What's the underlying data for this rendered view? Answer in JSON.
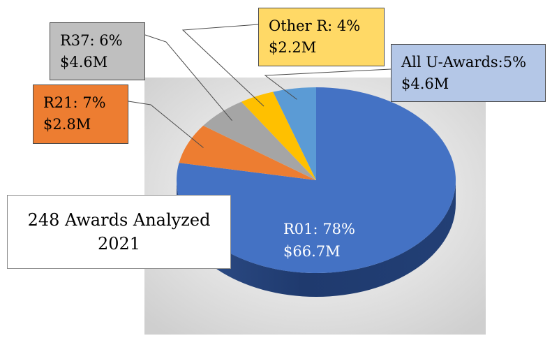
{
  "chart_data": {
    "type": "pie",
    "style": "3d",
    "slices": [
      {
        "label": "R01",
        "percent": 78,
        "amount": "$66.7M",
        "color": "#4472c4",
        "line1": "R01: 78%",
        "line2": "$66.7M"
      },
      {
        "label": "R21",
        "percent": 7,
        "amount": "$2.8M",
        "color": "#ed7d31",
        "line1": "R21: 7%",
        "line2": "$2.8M"
      },
      {
        "label": "R37",
        "percent": 6,
        "amount": "$4.6M",
        "color": "#a5a5a5",
        "line1": "R37: 6%",
        "line2": "$4.6M"
      },
      {
        "label": "Other R",
        "percent": 4,
        "amount": "$2.2M",
        "color": "#ffc000",
        "line1": "Other R: 4%",
        "line2": "$2.2M"
      },
      {
        "label": "All U-Awards",
        "percent": 5,
        "amount": "$4.6M",
        "color": "#5b9bd5",
        "line1": "All U-Awards:5%",
        "line2": "$4.6M"
      }
    ],
    "callout_colors": {
      "R21": "#ed7d31",
      "R37": "#bfbfbf",
      "Other R": "#ffd966",
      "All U-Awards": "#b4c7e7"
    },
    "plot_area_color": "#d9d9d9"
  },
  "summary": {
    "line1": "248 Awards Analyzed",
    "line2": "2021"
  }
}
